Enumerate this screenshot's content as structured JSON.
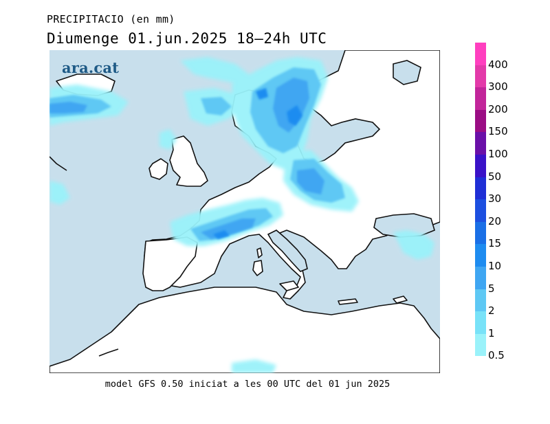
{
  "header": {
    "variable_title": "PRECIPITACIO (en mm)",
    "forecast_period": "Diumenge  01.jun.2025  18–24h UTC"
  },
  "watermark": {
    "text": "ara.cat",
    "color": "#1e5a86"
  },
  "footer": {
    "model_info": "model GFS 0.50 iniciat a les 00 UTC del 01 jun 2025"
  },
  "map": {
    "sea_color": "#c8dfec",
    "land_color": "#ffffff",
    "coastline_color": "#111111"
  },
  "legend": {
    "items": [
      {
        "label": "400",
        "color": "#ff3fbf"
      },
      {
        "label": "300",
        "color": "#e33aa9"
      },
      {
        "label": "200",
        "color": "#c2259a"
      },
      {
        "label": "150",
        "color": "#9a0d84"
      },
      {
        "label": "100",
        "color": "#6a10a8"
      },
      {
        "label": "50",
        "color": "#3a12c8"
      },
      {
        "label": "30",
        "color": "#1f2fd6"
      },
      {
        "label": "20",
        "color": "#1c4fe0"
      },
      {
        "label": "15",
        "color": "#1a6fe6"
      },
      {
        "label": "10",
        "color": "#1e8cf0"
      },
      {
        "label": "5",
        "color": "#3fa6f2"
      },
      {
        "label": "2",
        "color": "#5ec8f4"
      },
      {
        "label": "1",
        "color": "#78e2f8"
      },
      {
        "label": "0.5",
        "color": "#9af2fa"
      }
    ]
  }
}
